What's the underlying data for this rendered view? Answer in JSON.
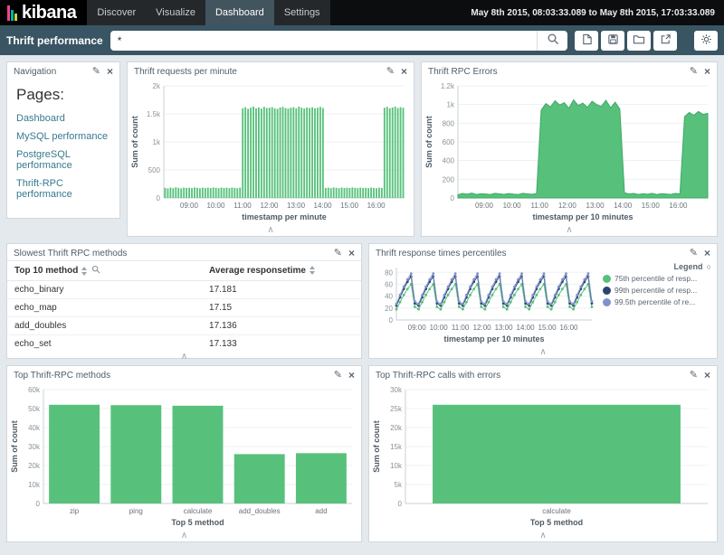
{
  "header": {
    "logo_text": "kibana",
    "nav_tabs": [
      {
        "label": "Discover",
        "active": false
      },
      {
        "label": "Visualize",
        "active": false
      },
      {
        "label": "Dashboard",
        "active": true
      },
      {
        "label": "Settings",
        "active": false
      }
    ],
    "time_range": "May 8th 2015, 08:03:33.089 to May 8th 2015, 17:03:33.089"
  },
  "toolbar": {
    "dashboard_title": "Thrift performance",
    "query_value": "*",
    "search_icon": "search-icon",
    "action_icons": [
      "new-document",
      "save",
      "folder-open",
      "share",
      "gear"
    ]
  },
  "icons": {
    "edit": "✎",
    "close": "×",
    "collapse": "∧",
    "legend_toggle": "○"
  },
  "panels": {
    "navigation": {
      "title": "Navigation",
      "heading": "Pages:",
      "links": [
        "Dashboard",
        "MySQL performance",
        "PostgreSQL performance",
        "Thrift-RPC performance"
      ]
    },
    "requests": {
      "title": "Thrift requests per minute",
      "chart": {
        "type": "bar-time",
        "color": "#57c17b",
        "ylabel": "Sum of count",
        "xlabel": "timestamp per minute",
        "ymax": 2000,
        "ytick_values": [
          0,
          500,
          1000,
          1500,
          2000
        ],
        "ytick_labels": [
          "0",
          "500",
          "1k",
          "1.5k",
          "2k"
        ],
        "x_ticks": [
          {
            "label": "09:00",
            "pos": 0.105
          },
          {
            "label": "10:00",
            "pos": 0.216
          },
          {
            "label": "11:00",
            "pos": 0.327
          },
          {
            "label": "12:00",
            "pos": 0.438
          },
          {
            "label": "13:00",
            "pos": 0.549
          },
          {
            "label": "14:00",
            "pos": 0.66
          },
          {
            "label": "15:00",
            "pos": 0.771
          },
          {
            "label": "16:00",
            "pos": 0.882
          }
        ],
        "values": [
          180,
          170,
          185,
          175,
          190,
          180,
          172,
          186,
          178,
          182,
          176,
          188,
          180,
          174,
          184,
          179,
          183,
          177,
          187,
          181,
          175,
          185,
          178,
          182,
          176,
          186,
          180,
          174,
          184,
          1600,
          1620,
          1590,
          1610,
          1630,
          1600,
          1615,
          1595,
          1625,
          1605,
          1610,
          1620,
          1600,
          1590,
          1615,
          1625,
          1605,
          1595,
          1610,
          1620,
          1600,
          1630,
          1610,
          1595,
          1615,
          1605,
          1620,
          1600,
          1610,
          1625,
          1605,
          178,
          184,
          176,
          188,
          180,
          174,
          186,
          179,
          183,
          177,
          187,
          181,
          175,
          185,
          178,
          182,
          176,
          186,
          180,
          174,
          184,
          179,
          1610,
          1625,
          1600,
          1615,
          1630,
          1605,
          1620,
          1610
        ]
      }
    },
    "errors": {
      "title": "Thrift RPC Errors",
      "chart": {
        "type": "area",
        "color": "#57c17b",
        "stroke": "#3ca966",
        "ylabel": "Sum of count",
        "xlabel": "timestamp per 10 minutes",
        "ymax": 1200,
        "ytick_values": [
          0,
          200,
          400,
          600,
          800,
          1000,
          1200
        ],
        "ytick_labels": [
          "0",
          "200",
          "400",
          "600",
          "800",
          "1k",
          "1.2k"
        ],
        "x_ticks": [
          {
            "label": "09:00",
            "pos": 0.105
          },
          {
            "label": "10:00",
            "pos": 0.216
          },
          {
            "label": "11:00",
            "pos": 0.327
          },
          {
            "label": "12:00",
            "pos": 0.438
          },
          {
            "label": "13:00",
            "pos": 0.549
          },
          {
            "label": "14:00",
            "pos": 0.66
          },
          {
            "label": "15:00",
            "pos": 0.771
          },
          {
            "label": "16:00",
            "pos": 0.882
          }
        ],
        "values": [
          35,
          48,
          40,
          52,
          38,
          45,
          42,
          36,
          50,
          44,
          39,
          47,
          41,
          37,
          49,
          43,
          40,
          46,
          940,
          1010,
          975,
          1040,
          995,
          1020,
          960,
          1050,
          990,
          1015,
          970,
          1035,
          1000,
          980,
          1045,
          965,
          1025,
          950,
          55,
          42,
          48,
          38,
          45,
          40,
          50,
          36,
          46,
          42,
          38,
          48,
          44,
          870,
          915,
          885,
          925,
          895,
          905
        ]
      }
    },
    "slowest": {
      "title": "Slowest Thrift RPC methods",
      "table": {
        "columns": [
          {
            "label": "Top 10 method",
            "sortable": true,
            "searchable": true
          },
          {
            "label": "Average responsetime",
            "sortable": true,
            "searchable": false
          }
        ],
        "rows": [
          [
            "echo_binary",
            "17.181"
          ],
          [
            "echo_map",
            "17.15"
          ],
          [
            "add_doubles",
            "17.136"
          ],
          [
            "echo_set",
            "17.133"
          ]
        ]
      }
    },
    "percentiles": {
      "title": "Thrift response times percentiles",
      "legend_title": "Legend",
      "chart": {
        "type": "line",
        "xlabel": "timestamp per 10 minutes",
        "ymax": 88,
        "ytick_values": [
          0,
          20,
          40,
          60,
          80
        ],
        "ytick_labels": [
          "0",
          "20",
          "40",
          "60",
          "80"
        ],
        "x_ticks": [
          {
            "label": "09:00",
            "pos": 0.105
          },
          {
            "label": "10:00",
            "pos": 0.216
          },
          {
            "label": "11:00",
            "pos": 0.327
          },
          {
            "label": "12:00",
            "pos": 0.438
          },
          {
            "label": "13:00",
            "pos": 0.549
          },
          {
            "label": "14:00",
            "pos": 0.66
          },
          {
            "label": "15:00",
            "pos": 0.771
          },
          {
            "label": "16:00",
            "pos": 0.882
          }
        ],
        "series": [
          {
            "name": "75th percentile of resp...",
            "color": "#57c17b",
            "values": [
              18,
              30,
              42,
              52,
              60,
              22,
              18,
              30,
              42,
              52,
              60,
              22,
              18,
              30,
              42,
              52,
              60,
              22,
              18,
              30,
              42,
              52,
              60,
              22,
              18,
              30,
              42,
              52,
              60,
              22,
              18,
              30,
              42,
              52,
              60,
              22,
              18,
              30,
              42,
              52,
              60,
              22,
              18,
              30,
              42,
              52,
              60,
              22,
              18,
              30,
              42,
              52,
              60,
              22
            ]
          },
          {
            "name": "99th percentile of resp...",
            "color": "#2d4373",
            "values": [
              24,
              38,
              52,
              64,
              73,
              28,
              24,
              38,
              52,
              64,
              73,
              28,
              24,
              38,
              52,
              64,
              73,
              28,
              24,
              38,
              52,
              64,
              73,
              28,
              24,
              38,
              52,
              64,
              73,
              28,
              24,
              38,
              52,
              64,
              73,
              28,
              24,
              38,
              52,
              64,
              73,
              28,
              24,
              38,
              52,
              64,
              73,
              28,
              24,
              38,
              52,
              64,
              73,
              28
            ]
          },
          {
            "name": "99.5th percentile of re...",
            "color": "#7e93cc",
            "values": [
              27,
              42,
              56,
              68,
              78,
              31,
              27,
              42,
              56,
              68,
              78,
              31,
              27,
              42,
              56,
              68,
              78,
              31,
              27,
              42,
              56,
              68,
              78,
              31,
              27,
              42,
              56,
              68,
              78,
              31,
              27,
              42,
              56,
              68,
              78,
              31,
              27,
              42,
              56,
              68,
              78,
              31,
              27,
              42,
              56,
              68,
              78,
              31,
              27,
              42,
              56,
              68,
              78,
              31
            ]
          }
        ]
      }
    },
    "top_methods": {
      "title": "Top Thrift-RPC methods",
      "chart": {
        "type": "bar-category",
        "color": "#57c17b",
        "ylabel": "Sum of count",
        "xlabel": "Top 5 method",
        "ymax": 60000,
        "ytick_values": [
          0,
          10000,
          20000,
          30000,
          40000,
          50000,
          60000
        ],
        "ytick_labels": [
          "0",
          "10k",
          "20k",
          "30k",
          "40k",
          "50k",
          "60k"
        ],
        "categories": [
          "zip",
          "ping",
          "calculate",
          "add_doubles",
          "add"
        ],
        "values": [
          52000,
          51800,
          51500,
          26000,
          26500
        ]
      }
    },
    "error_calls": {
      "title": "Top Thrift-RPC calls with errors",
      "chart": {
        "type": "bar-category",
        "color": "#57c17b",
        "ylabel": "Sum of count",
        "xlabel": "Top 5 method",
        "ymax": 30000,
        "ytick_values": [
          0,
          5000,
          10000,
          15000,
          20000,
          25000,
          30000
        ],
        "ytick_labels": [
          "0",
          "5k",
          "10k",
          "15k",
          "20k",
          "25k",
          "30k"
        ],
        "categories": [
          "calculate"
        ],
        "values": [
          26000
        ]
      }
    }
  }
}
